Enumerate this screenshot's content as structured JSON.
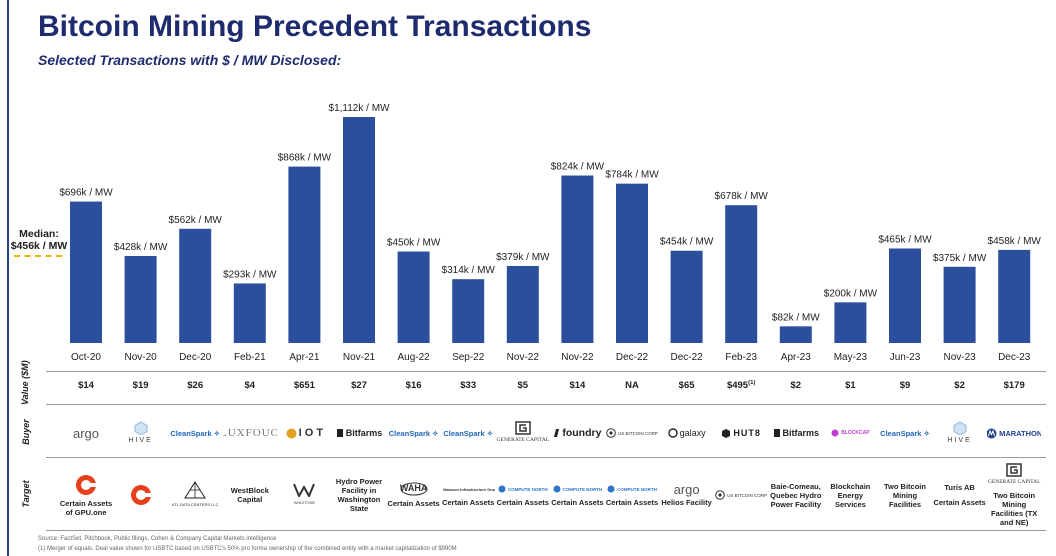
{
  "title": "Bitcoin Mining Precedent Transactions",
  "subtitle": "Selected Transactions with $ / MW Disclosed:",
  "median": {
    "label_line1": "Median:",
    "label_line2": "$456k / MW",
    "value": 456
  },
  "chart_data": {
    "type": "bar",
    "categories": [
      "Oct-20",
      "Nov-20",
      "Dec-20",
      "Feb-21",
      "Apr-21",
      "Nov-21",
      "Aug-22",
      "Sep-22",
      "Nov-22",
      "Nov-22",
      "Dec-22",
      "Dec-22",
      "Feb-23",
      "Apr-23",
      "May-23",
      "Jun-23",
      "Nov-23",
      "Dec-23"
    ],
    "values": [
      696,
      428,
      562,
      293,
      868,
      1112,
      450,
      314,
      379,
      824,
      784,
      454,
      678,
      82,
      200,
      465,
      375,
      458
    ],
    "data_labels": [
      "$696k / MW",
      "$428k / MW",
      "$562k / MW",
      "$293k / MW",
      "$868k / MW",
      "$1,112k / MW",
      "$450k / MW",
      "$314k / MW",
      "$379k / MW",
      "$824k / MW",
      "$784k / MW",
      "$454k / MW",
      "$678k / MW",
      "$82k / MW",
      "$200k / MW",
      "$465k / MW",
      "$375k / MW",
      "$458k / MW"
    ],
    "ylim": [
      0,
      1112
    ],
    "grid": false,
    "bar_color": "#2b4f9c"
  },
  "rows": {
    "value_label": "Value ($M)",
    "buyer_label": "Buyer",
    "target_label": "Target"
  },
  "values": [
    "$14",
    "$19",
    "$26",
    "$4",
    "$651",
    "$27",
    "$16",
    "$33",
    "$5",
    "$14",
    "NA",
    "$65",
    "$495",
    "$2",
    "$1",
    "$9",
    "$2",
    "$179"
  ],
  "value_note": "(1)",
  "buyers": [
    {
      "name": "argo",
      "icon": "argo-logo"
    },
    {
      "name": "HIVE",
      "icon": "hive-logo"
    },
    {
      "name": "CleanSpark",
      "icon": "cleanspark-logo"
    },
    {
      "name": "LUXFOUO",
      "icon": "luxor-logo"
    },
    {
      "name": "I O T",
      "icon": "iot-logo"
    },
    {
      "name": "Bitfarms",
      "icon": "bitfarms-logo"
    },
    {
      "name": "CleanSpark",
      "icon": "cleanspark-logo"
    },
    {
      "name": "CleanSpark",
      "icon": "cleanspark-logo"
    },
    {
      "name": "GENERATE CAPITAL",
      "icon": "generate-capital-logo"
    },
    {
      "name": "foundry",
      "icon": "foundry-logo"
    },
    {
      "name": "US BITCOIN CORP",
      "icon": "usbtc-logo"
    },
    {
      "name": "galaxy",
      "icon": "galaxy-logo"
    },
    {
      "name": "HUT8",
      "icon": "hut8-logo"
    },
    {
      "name": "Bitfarms",
      "icon": "bitfarms-logo"
    },
    {
      "name": "BLOCKCAP",
      "icon": "blockcap-logo"
    },
    {
      "name": "CleanSpark",
      "icon": "cleanspark-logo"
    },
    {
      "name": "HIVE",
      "icon": "hive-logo"
    },
    {
      "name": "MARATHON",
      "icon": "marathon-logo"
    }
  ],
  "targets": [
    {
      "text": "Certain Assets of GPU.one",
      "icon": "gpu-one-logo"
    },
    {
      "text": "",
      "icon": "gpu-one-logo"
    },
    {
      "text": "",
      "icon": "atl-logo",
      "logo_text": "ATL DATA CENTERS LLC"
    },
    {
      "text": "WestBlock Capital",
      "icon": ""
    },
    {
      "text": "",
      "icon": "winstone-logo",
      "logo_text": "WINSTONE"
    },
    {
      "text": "Hydro Power Facility in Washington State",
      "icon": ""
    },
    {
      "text": "Certain Assets",
      "icon": "waha-logo",
      "logo_text": "WAHA"
    },
    {
      "text": "Certain Assets",
      "icon": "mawson-logo",
      "logo_text": "Mawson Infrastructure Group Inc."
    },
    {
      "text": "Certain Assets",
      "icon": "compute-north-logo",
      "logo_text": "COMPUTE NORTH"
    },
    {
      "text": "Certain Assets",
      "icon": "compute-north-logo",
      "logo_text": "COMPUTE NORTH"
    },
    {
      "text": "Certain Assets",
      "icon": "compute-north-logo",
      "logo_text": "COMPUTE NORTH"
    },
    {
      "text": "Helios Facility",
      "icon": "argo-logo",
      "logo_text": "argo"
    },
    {
      "text": "",
      "icon": "usbtc-logo",
      "logo_text": "US BITCOIN CORP"
    },
    {
      "text": "Baie-Comeau, Quebec Hydro Power Facility",
      "icon": ""
    },
    {
      "text": "Blockchain Energy Services",
      "icon": ""
    },
    {
      "text": "Two Bitcoin Mining Facilities",
      "icon": ""
    },
    {
      "text": "Turis AB",
      "text2": "Certain Assets",
      "icon": ""
    },
    {
      "text": "Two Bitcoin Mining Facilities (TX and NE)",
      "icon": "generate-capital-logo",
      "logo_text": "GENERATE CAPITAL"
    }
  ],
  "footnotes": {
    "source": "Source: FactSet, Pitchbook, Public filings, Cohen & Company Capital Markets intelligence",
    "note1": "(1)      Merger of equals. Deal value shown for USBTC based on USBTC's 50% pro forma ownership of the combined entity with a market capitalization of $990M"
  }
}
